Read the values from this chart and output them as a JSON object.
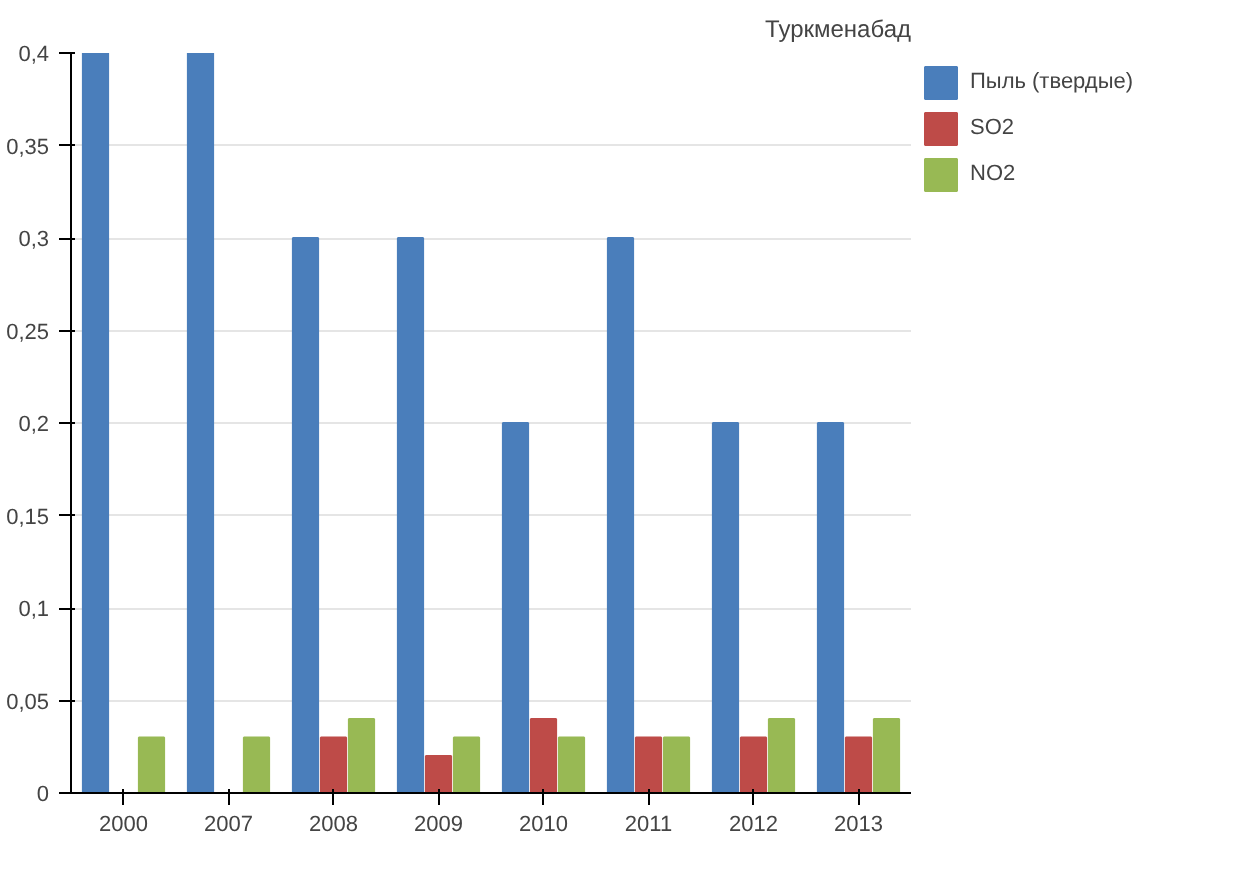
{
  "chart_data": {
    "type": "bar",
    "title": "Туркменабад",
    "categories": [
      "2000",
      "2007",
      "2008",
      "2009",
      "2010",
      "2011",
      "2012",
      "2013"
    ],
    "series": [
      {
        "name": "Пыль (твердые)",
        "color": "#4a7ebb",
        "values": [
          0.4,
          0.4,
          0.3,
          0.3,
          0.2,
          0.3,
          0.2,
          0.2
        ]
      },
      {
        "name": "SO2",
        "color": "#be4b48",
        "values": [
          0,
          0,
          0.03,
          0.02,
          0.04,
          0.03,
          0.03,
          0.03
        ]
      },
      {
        "name": "NO2",
        "color": "#98b954",
        "values": [
          0.03,
          0.03,
          0.04,
          0.03,
          0.03,
          0.03,
          0.04,
          0.04
        ]
      }
    ],
    "ylim": [
      0,
      0.4
    ],
    "yticks": [
      {
        "value": 0,
        "label": "0"
      },
      {
        "value": 0.05,
        "label": "0,05"
      },
      {
        "value": 0.1,
        "label": "0,1"
      },
      {
        "value": 0.15,
        "label": "0,15"
      },
      {
        "value": 0.2,
        "label": "0,2"
      },
      {
        "value": 0.25,
        "label": "0,25"
      },
      {
        "value": 0.3,
        "label": "0,3"
      },
      {
        "value": 0.35,
        "label": "0,35"
      },
      {
        "value": 0.4,
        "label": "0,4"
      }
    ],
    "grid": "y",
    "legend": "right"
  }
}
